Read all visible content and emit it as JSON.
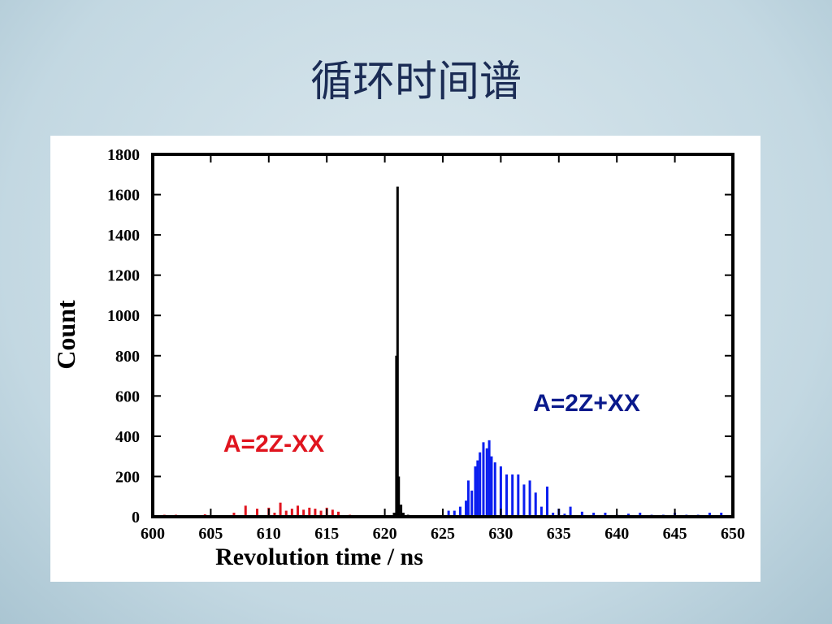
{
  "title": "循环时间谱",
  "chart_data": {
    "type": "histogram-bars",
    "x_label": "Revolution time / ns",
    "y_label": "Count",
    "xlim": [
      600,
      650
    ],
    "xticks": [
      600,
      605,
      610,
      615,
      620,
      625,
      630,
      635,
      640,
      645,
      650
    ],
    "ylim": [
      0,
      1800
    ],
    "yticks": [
      0,
      200,
      400,
      600,
      800,
      1000,
      1200,
      1400,
      1600,
      1800
    ],
    "annotations": [
      "A=2Z-XX",
      "A=2Z+XX"
    ],
    "series": [
      {
        "color": "#e0141e",
        "x": [
          601,
          602,
          604,
          604.5,
          606,
          607,
          608,
          609,
          610,
          610.5,
          611,
          611.5,
          612,
          612.5,
          613,
          613.5,
          614,
          614.5,
          615,
          615.5,
          616,
          617,
          618
        ],
        "values": [
          10,
          10,
          8,
          12,
          8,
          20,
          55,
          40,
          45,
          20,
          70,
          30,
          40,
          55,
          35,
          45,
          40,
          30,
          45,
          35,
          25,
          10,
          5
        ]
      },
      {
        "color": "#000000",
        "x": [
          620.8,
          621.0,
          621.1,
          621.2,
          621.4,
          621.6,
          622,
          623
        ],
        "values": [
          20,
          800,
          1640,
          200,
          60,
          20,
          10,
          5
        ]
      },
      {
        "color": "#0a1ef0",
        "x": [
          625.5,
          626,
          626.5,
          627,
          627.2,
          627.5,
          627.8,
          628,
          628.2,
          628.5,
          628.8,
          629,
          629.2,
          629.5,
          630,
          630.5,
          631,
          631.5,
          632,
          632.5,
          633,
          633.5,
          634,
          634.5,
          635,
          635.5,
          636,
          637,
          638,
          639,
          640,
          641,
          642,
          643,
          644,
          645,
          646,
          647,
          648,
          649
        ],
        "values": [
          30,
          30,
          50,
          80,
          180,
          130,
          250,
          280,
          320,
          370,
          340,
          380,
          300,
          270,
          250,
          210,
          210,
          210,
          160,
          180,
          120,
          50,
          150,
          20,
          40,
          15,
          50,
          25,
          20,
          20,
          10,
          15,
          20,
          10,
          10,
          20,
          10,
          10,
          20,
          20
        ]
      }
    ]
  }
}
